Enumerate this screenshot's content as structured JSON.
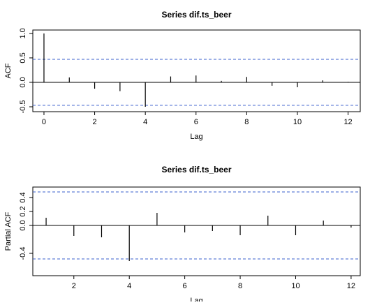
{
  "chart_data": [
    {
      "type": "acf",
      "title": "Series  dif.ts_beer",
      "x_label": "Lag",
      "y_label": "ACF",
      "x": [
        0,
        1,
        2,
        3,
        4,
        5,
        6,
        7,
        8,
        9,
        10,
        11,
        12
      ],
      "values": [
        1.0,
        0.1,
        -0.13,
        -0.18,
        -0.5,
        0.12,
        0.14,
        0.03,
        0.11,
        -0.07,
        -0.1,
        0.04,
        0.01
      ],
      "ci_lines": [
        0.47,
        -0.47
      ],
      "ci_color": "#3a5fcd",
      "color": "#000000",
      "xlim": [
        -0.44,
        12.48
      ],
      "ylim": [
        -0.6,
        1.07
      ],
      "xticks": [
        0,
        2,
        4,
        6,
        8,
        10,
        12
      ],
      "yticks": [
        -0.5,
        {
          "value": 0,
          "label": "0.0"
        },
        0.5,
        {
          "value": 1,
          "label": "1.0"
        }
      ]
    },
    {
      "type": "acf",
      "title": "Series  dif.ts_beer",
      "x_label": "Lag",
      "y_label": "Partial ACF",
      "x": [
        1,
        2,
        3,
        4,
        5,
        6,
        7,
        8,
        9,
        10,
        11,
        12
      ],
      "values": [
        0.11,
        -0.15,
        -0.17,
        -0.51,
        0.18,
        -0.1,
        -0.08,
        -0.14,
        0.14,
        -0.14,
        0.07,
        -0.03
      ],
      "ci_lines": [
        0.48,
        -0.48
      ],
      "ci_color": "#3a5fcd",
      "color": "#000000",
      "xlim": [
        0.52,
        12.33
      ],
      "ylim": [
        -0.72,
        0.55
      ],
      "xticks": [
        2,
        4,
        6,
        8,
        10,
        12
      ],
      "yticks": [
        -0.4,
        {
          "value": 0,
          "label": "0.0"
        },
        0.2,
        0.4
      ]
    }
  ]
}
